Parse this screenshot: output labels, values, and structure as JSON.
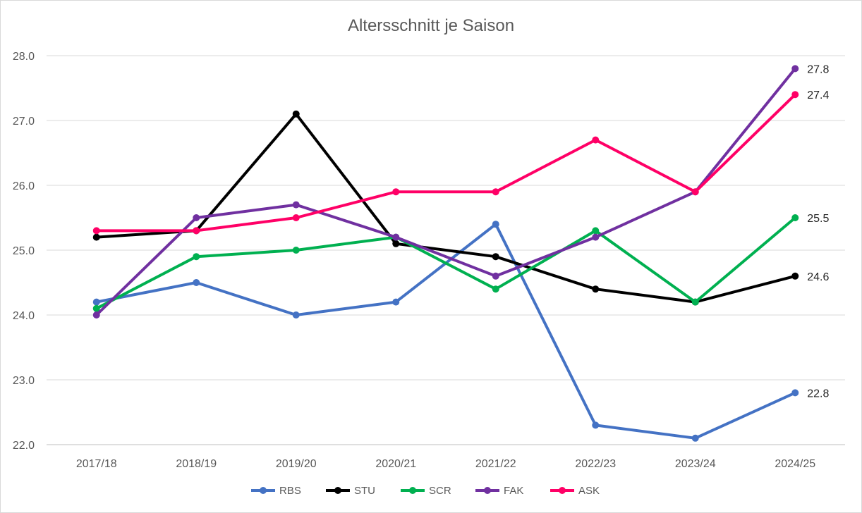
{
  "chart_data": {
    "type": "line",
    "title": "Altersschnitt je Saison",
    "xlabel": "",
    "ylabel": "",
    "ylim": [
      22.0,
      28.0
    ],
    "yticks": [
      "22.0",
      "23.0",
      "24.0",
      "25.0",
      "26.0",
      "27.0",
      "28.0"
    ],
    "categories": [
      "2017/18",
      "2018/19",
      "2019/20",
      "2020/21",
      "2021/22",
      "2022/23",
      "2023/24",
      "2024/25"
    ],
    "grid": "horizontal",
    "legend": "bottom",
    "series": [
      {
        "name": "RBS",
        "color": "#4472C4",
        "values": [
          24.2,
          24.5,
          24.0,
          24.2,
          25.4,
          22.3,
          22.1,
          22.8
        ],
        "end_label": "22.8"
      },
      {
        "name": "STU",
        "color": "#000000",
        "values": [
          25.2,
          25.3,
          27.1,
          25.1,
          24.9,
          24.4,
          24.2,
          24.6
        ],
        "end_label": "24.6"
      },
      {
        "name": "SCR",
        "color": "#00B050",
        "values": [
          24.1,
          24.9,
          25.0,
          25.2,
          24.4,
          25.3,
          24.2,
          25.5
        ],
        "end_label": "25.5"
      },
      {
        "name": "FAK",
        "color": "#7030A0",
        "values": [
          24.0,
          25.5,
          25.7,
          25.2,
          24.6,
          25.2,
          25.9,
          27.8
        ],
        "end_label": "27.8"
      },
      {
        "name": "ASK",
        "color": "#FF0066",
        "values": [
          25.3,
          25.3,
          25.5,
          25.9,
          25.9,
          26.7,
          25.9,
          27.4
        ],
        "end_label": "27.4"
      }
    ]
  }
}
